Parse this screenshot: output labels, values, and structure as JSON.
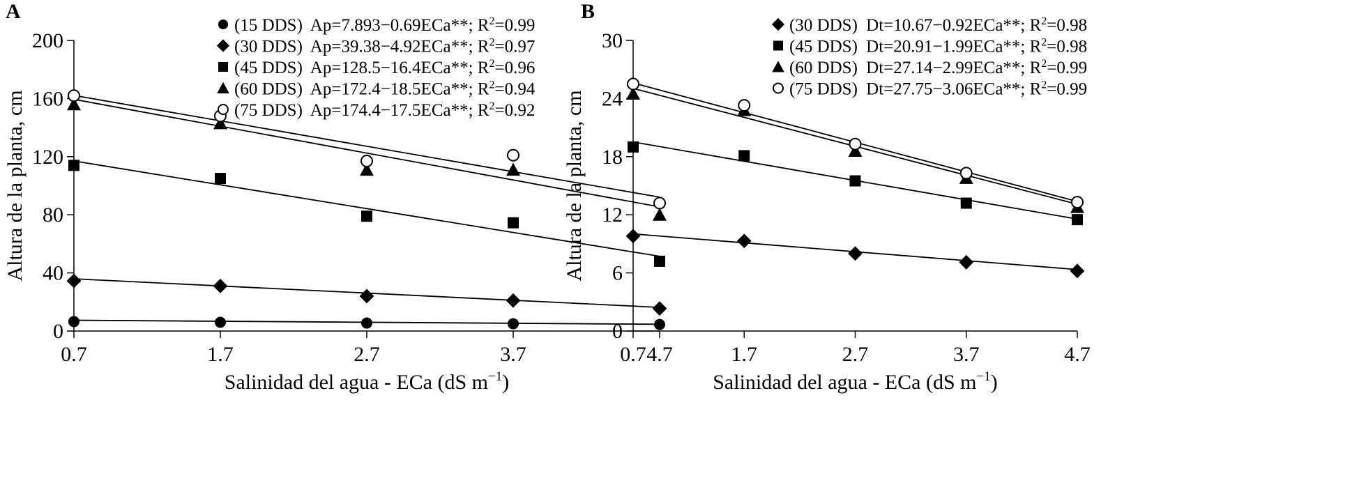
{
  "chart_data": [
    {
      "panel": "A",
      "type": "scatter",
      "xlabel": "Salinidad del agua - ECa (dS m",
      "xlabel_sup": "−1",
      "xlabel_end": ")",
      "ylabel": "Altura de la planta, cm",
      "x": [
        0.7,
        1.7,
        2.7,
        3.7,
        4.7
      ],
      "xticks": [
        "0.7",
        "1.7",
        "2.7",
        "3.7",
        "4.7"
      ],
      "xlim": [
        0.7,
        4.7
      ],
      "ylim": [
        0,
        200
      ],
      "yticks": [
        0,
        40,
        80,
        120,
        160,
        200
      ],
      "ytick_labels": [
        "0",
        "40",
        "80",
        "120",
        "160",
        "200"
      ],
      "legend_position": "top-right",
      "series": [
        {
          "name": "(15 DDS)",
          "marker": "circle-filled",
          "equation": "Ap=7.893−0.69ECa**; R",
          "r2_sup": "2",
          "r2_value": "=0.99",
          "values": [
            6.5,
            6,
            5.5,
            5,
            4.5
          ],
          "fit": {
            "intercept": 7.893,
            "slope": -0.69
          }
        },
        {
          "name": "(30 DDS)",
          "marker": "diamond",
          "equation": "Ap=39.38−4.92ECa**; R",
          "r2_sup": "2",
          "r2_value": "=0.97",
          "values": [
            34.5,
            31,
            24,
            21,
            15.5
          ],
          "fit": {
            "intercept": 39.38,
            "slope": -4.92
          }
        },
        {
          "name": "(45 DDS)",
          "marker": "square",
          "equation": "Ap=128.5−16.4ECa**; R",
          "r2_sup": "2",
          "r2_value": "=0.96",
          "values": [
            114,
            105,
            79,
            74.5,
            48
          ],
          "fit": {
            "intercept": 128.5,
            "slope": -16.4
          }
        },
        {
          "name": "(60 DDS)",
          "marker": "triangle",
          "equation": "Ap=172.4−18.5ECa**; R",
          "r2_sup": "2",
          "r2_value": "=0.94",
          "values": [
            156,
            143,
            111,
            111,
            80
          ],
          "fit": {
            "intercept": 172.4,
            "slope": -18.5
          }
        },
        {
          "name": "(75 DDS)",
          "marker": "circle-open",
          "equation": "Ap=174.4−17.5ECa**; R",
          "r2_sup": "2",
          "r2_value": "=0.92",
          "values": [
            162,
            148,
            117,
            121,
            88
          ],
          "fit": {
            "intercept": 174.4,
            "slope": -17.5
          }
        }
      ]
    },
    {
      "panel": "B",
      "type": "scatter",
      "xlabel": "Salinidad del agua - ECa (dS m",
      "xlabel_sup": "−1",
      "xlabel_end": ")",
      "ylabel": "Altura de la planta, cm",
      "x": [
        0.7,
        1.7,
        2.7,
        3.7,
        4.7
      ],
      "xticks": [
        "0.7",
        "1.7",
        "2.7",
        "3.7",
        "4.7"
      ],
      "xlim": [
        0.7,
        4.7
      ],
      "ylim": [
        0,
        30
      ],
      "yticks": [
        0,
        6,
        12,
        18,
        24,
        30
      ],
      "ytick_labels": [
        "0",
        "6",
        "12",
        "18",
        "24",
        "30"
      ],
      "legend_position": "top-right",
      "series": [
        {
          "name": "(30 DDS)",
          "marker": "diamond",
          "equation": "Dt=10.67−0.92ECa**; R",
          "r2_sup": "2",
          "r2_value": "=0.98",
          "values": [
            9.8,
            9.3,
            8,
            7.1,
            6.2
          ],
          "fit": {
            "intercept": 10.67,
            "slope": -0.92
          }
        },
        {
          "name": "(45 DDS)",
          "marker": "square",
          "equation": "Dt=20.91−1.99ECa**; R",
          "r2_sup": "2",
          "r2_value": "=0.98",
          "values": [
            19,
            18.1,
            15.5,
            13.2,
            11.5
          ],
          "fit": {
            "intercept": 20.91,
            "slope": -1.99
          }
        },
        {
          "name": "(60 DDS)",
          "marker": "triangle",
          "equation": "Dt=27.14−2.99ECa**; R",
          "r2_sup": "2",
          "r2_value": "=0.99",
          "values": [
            24.5,
            22.8,
            18.6,
            15.8,
            12.8
          ],
          "fit": {
            "intercept": 27.14,
            "slope": -2.99
          }
        },
        {
          "name": "(75 DDS)",
          "marker": "circle-open",
          "equation": "Dt=27.75−3.06ECa**; R",
          "r2_sup": "2",
          "r2_value": "=0.99",
          "values": [
            25.5,
            23.3,
            19.3,
            16.3,
            13.3
          ],
          "fit": {
            "intercept": 27.75,
            "slope": -3.06
          }
        }
      ]
    }
  ]
}
